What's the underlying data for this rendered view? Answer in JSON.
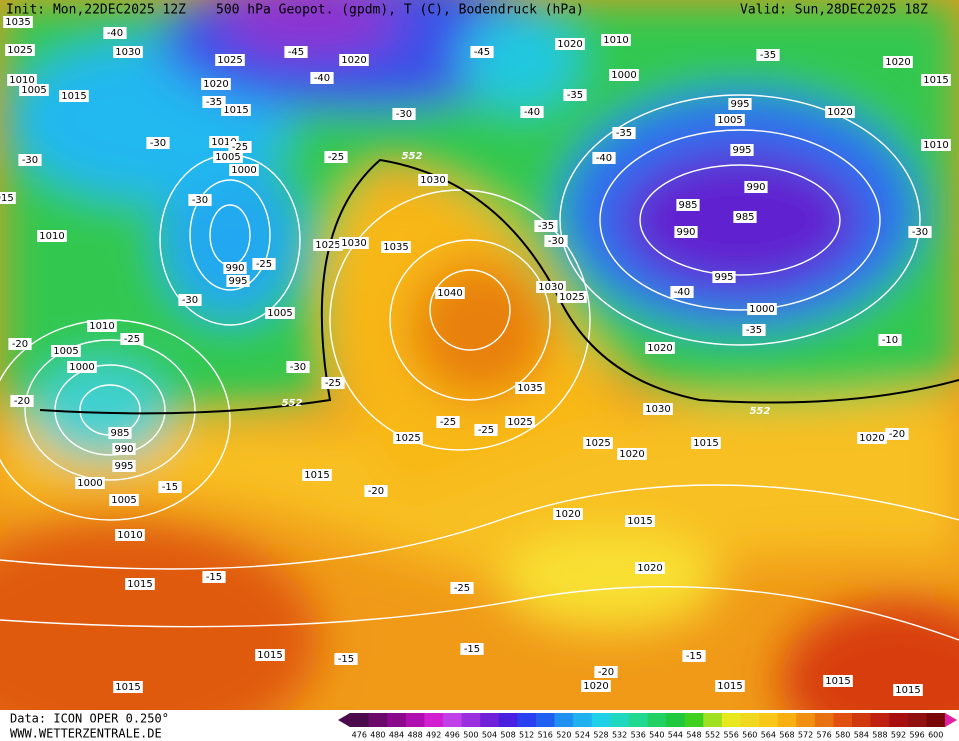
{
  "header": {
    "init": "Init: Mon,22DEC2025 12Z",
    "title": "500 hPa Geopot. (gpdm), T (C), Bodendruck (hPa)",
    "valid": "Valid: Sun,28DEC2025 18Z"
  },
  "footer": {
    "model": "Data: ICON OPER 0.250°",
    "site": "WWW.WETTERZENTRALE.DE"
  },
  "colorbar": {
    "labels": [
      476,
      480,
      484,
      488,
      492,
      496,
      500,
      504,
      508,
      512,
      516,
      520,
      524,
      528,
      532,
      536,
      540,
      544,
      548,
      552,
      556,
      560,
      564,
      568,
      572,
      576,
      580,
      584,
      588,
      592,
      596,
      600
    ],
    "colors": [
      "#4b0a4b",
      "#6a0a6a",
      "#8a0a8a",
      "#b010b0",
      "#d020d0",
      "#c040e8",
      "#9a30e0",
      "#7020d8",
      "#4a20e0",
      "#2a40f0",
      "#2060f0",
      "#2090f0",
      "#20b0f0",
      "#20d0e8",
      "#20d8c0",
      "#20d890",
      "#20d060",
      "#20c840",
      "#40d020",
      "#a0e020",
      "#e8e820",
      "#f0d820",
      "#f8c818",
      "#f8b010",
      "#f09010",
      "#e87010",
      "#e05010",
      "#d03810",
      "#c02010",
      "#a81010",
      "#901010",
      "#780808"
    ]
  },
  "map": {
    "pressure_labels": [
      "1035",
      "1025",
      "1030",
      "1025",
      "1020",
      "1010",
      "1005",
      "1015",
      "1015",
      "1010",
      "1005",
      "1000",
      "990",
      "995",
      "1010",
      "1025",
      "1030",
      "1035",
      "1040",
      "1030",
      "1025",
      "1035",
      "1030",
      "1025",
      "1020",
      "1020",
      "1010",
      "1000",
      "995",
      "1005",
      "995",
      "990",
      "985",
      "985",
      "990",
      "995",
      "1000",
      "1005",
      "1010",
      "1015",
      "1020",
      "1015",
      "1020",
      "1010",
      "1005",
      "1000",
      "985",
      "990",
      "995",
      "1000",
      "1005",
      "1010",
      "1015",
      "1025",
      "1015",
      "1020",
      "1015",
      "1020",
      "1015",
      "1015",
      "1020",
      "1015",
      "1015",
      "1015",
      "1020",
      "1020",
      "1030",
      "1025",
      "1020",
      "1015"
    ],
    "temperature_labels": [
      "-40",
      "-45",
      "-40",
      "-45",
      "-35",
      "-30",
      "-25",
      "-30",
      "-25",
      "-30",
      "-35",
      "-40",
      "-35",
      "-40",
      "-35",
      "-35",
      "-30",
      "-40",
      "-35",
      "-30",
      "-25",
      "-30",
      "-25",
      "-25",
      "-20",
      "-20",
      "-25",
      "-25",
      "-20",
      "-15",
      "-15",
      "-25",
      "-15",
      "-15",
      "-20",
      "-15",
      "-20",
      "-30",
      "-30",
      "-10"
    ],
    "height_labels": [
      "552",
      "552",
      "552"
    ]
  }
}
